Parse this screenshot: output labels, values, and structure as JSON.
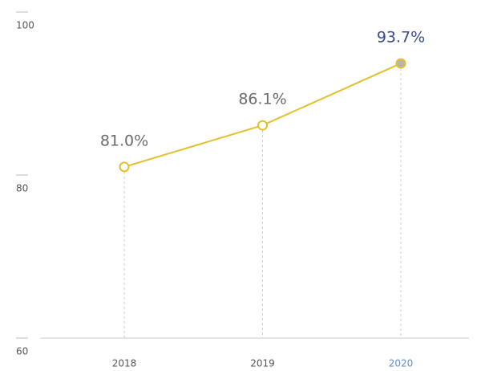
{
  "chart_data": {
    "type": "line",
    "categories": [
      "2018",
      "2019",
      "2020"
    ],
    "values": [
      81.0,
      86.1,
      93.7
    ],
    "value_labels": [
      "81.0%",
      "86.1%",
      "93.7%"
    ],
    "color": "#e2c02a",
    "ylim": [
      60,
      100
    ],
    "yticks": [
      60,
      80,
      100
    ]
  }
}
